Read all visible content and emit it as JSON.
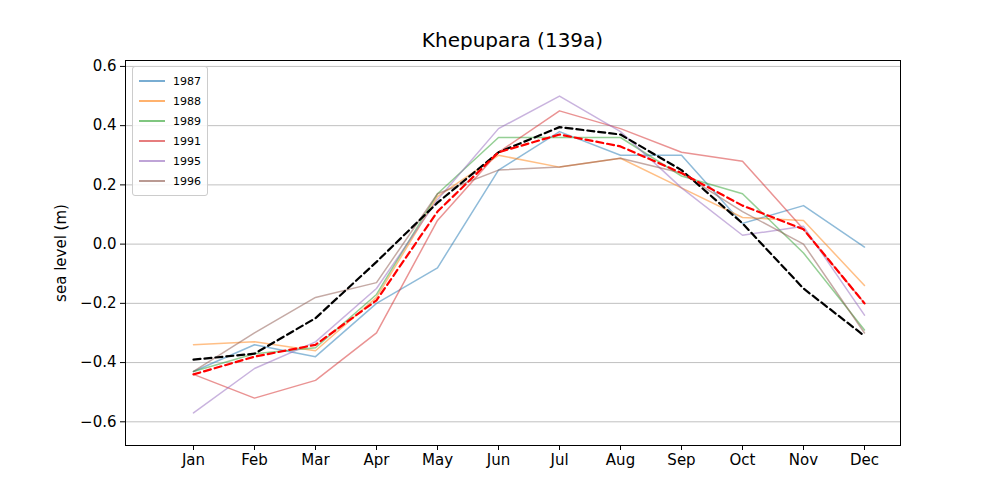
{
  "chart_data": {
    "type": "line",
    "title": "Khepupara (139a)",
    "y_label": "sea level (m)",
    "categories": [
      "Jan",
      "Feb",
      "Mar",
      "Apr",
      "May",
      "Jun",
      "Jul",
      "Aug",
      "Sep",
      "Oct",
      "Nov",
      "Dec"
    ],
    "ylim": [
      -0.68,
      0.62
    ],
    "yticks": [
      {
        "value": -0.6,
        "label": "−0.6"
      },
      {
        "value": -0.4,
        "label": "−0.4"
      },
      {
        "value": -0.2,
        "label": "−0.2"
      },
      {
        "value": 0,
        "label": "0.0"
      },
      {
        "value": 0.2,
        "label": "0.2"
      },
      {
        "value": 0.4,
        "label": "0.4"
      },
      {
        "value": 0.6,
        "label": "0.6"
      }
    ],
    "grid": true,
    "legend": "upper left",
    "series": [
      {
        "name": "1987",
        "color": "#1f77b4",
        "line_style": "solid",
        "values": [
          -0.43,
          -0.34,
          -0.38,
          -0.2,
          -0.08,
          0.25,
          0.38,
          0.3,
          0.3,
          0.07,
          0.13,
          -0.01
        ]
      },
      {
        "name": "1988",
        "color": "#ff7f0e",
        "line_style": "solid",
        "values": [
          -0.34,
          -0.33,
          -0.36,
          -0.18,
          0.16,
          0.3,
          0.26,
          0.29,
          0.19,
          0.09,
          0.08,
          -0.14
        ]
      },
      {
        "name": "1989",
        "color": "#2ca02c",
        "line_style": "solid",
        "values": [
          -0.43,
          -0.37,
          -0.35,
          -0.17,
          0.17,
          0.36,
          0.36,
          0.36,
          0.23,
          0.17,
          -0.03,
          -0.29
        ]
      },
      {
        "name": "1991",
        "color": "#d62728",
        "line_style": "solid",
        "values": [
          -0.44,
          -0.52,
          -0.46,
          -0.3,
          0.08,
          0.31,
          0.45,
          0.39,
          0.31,
          0.28,
          0.05,
          -0.2
        ]
      },
      {
        "name": "1995",
        "color": "#9467bd",
        "line_style": "solid",
        "values": [
          -0.57,
          -0.42,
          -0.33,
          -0.15,
          0.15,
          0.39,
          0.5,
          0.38,
          0.19,
          0.03,
          0.06,
          -0.24
        ]
      },
      {
        "name": "1996",
        "color": "#8c564b",
        "line_style": "solid",
        "values": [
          -0.43,
          -0.3,
          -0.18,
          -0.13,
          0.17,
          0.25,
          0.26,
          0.29,
          0.24,
          0.11,
          0.0,
          -0.3
        ]
      },
      {
        "color": "#000000",
        "line_style": "dashed",
        "values": [
          -0.39,
          -0.37,
          -0.25,
          -0.06,
          0.14,
          0.31,
          0.395,
          0.37,
          0.25,
          0.07,
          -0.15,
          -0.31
        ]
      },
      {
        "color": "#ff0000",
        "line_style": "dashed",
        "values": [
          -0.44,
          -0.38,
          -0.34,
          -0.19,
          0.11,
          0.31,
          0.37,
          0.33,
          0.24,
          0.13,
          0.05,
          -0.2
        ]
      }
    ]
  }
}
